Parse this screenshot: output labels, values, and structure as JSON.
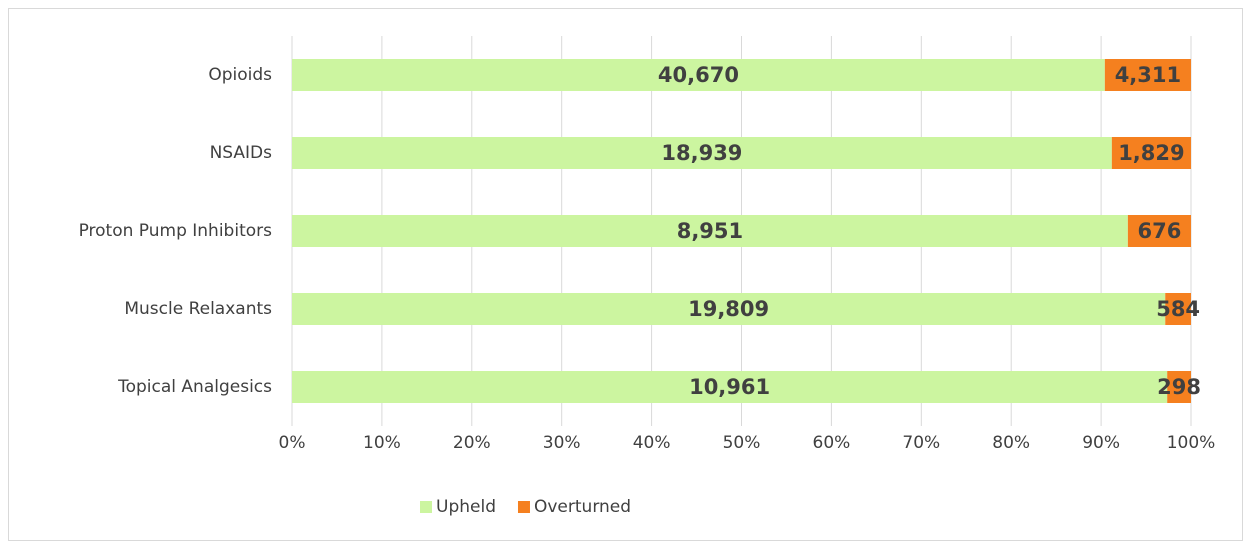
{
  "chart_data": {
    "type": "bar",
    "orientation": "horizontal",
    "stacking": "percent",
    "categories": [
      "Opioids",
      "NSAIDs",
      "Proton Pump Inhibitors",
      "Muscle Relaxants",
      "Topical Analgesics"
    ],
    "series": [
      {
        "name": "Upheld",
        "color": "#ccf5a0",
        "values": [
          40670,
          18939,
          8951,
          19809,
          10961
        ],
        "value_labels": [
          "40,670",
          "18,939",
          "8,951",
          "19,809",
          "10,961"
        ]
      },
      {
        "name": "Overturned",
        "color": "#f5801f",
        "values": [
          4311,
          1829,
          676,
          584,
          298
        ],
        "value_labels": [
          "4,311",
          "1,829",
          "676",
          "584",
          "298"
        ]
      }
    ],
    "xlim": [
      0,
      100
    ],
    "xticks": [
      {
        "value": 0,
        "label": "0%"
      },
      {
        "value": 10,
        "label": "10%"
      },
      {
        "value": 20,
        "label": "20%"
      },
      {
        "value": 30,
        "label": "30%"
      },
      {
        "value": 40,
        "label": "40%"
      },
      {
        "value": 50,
        "label": "50%"
      },
      {
        "value": 60,
        "label": "60%"
      },
      {
        "value": 70,
        "label": "70%"
      },
      {
        "value": 80,
        "label": "80%"
      },
      {
        "value": 90,
        "label": "90%"
      },
      {
        "value": 100,
        "label": "100%"
      }
    ],
    "grid": true,
    "legend": "bottom"
  }
}
